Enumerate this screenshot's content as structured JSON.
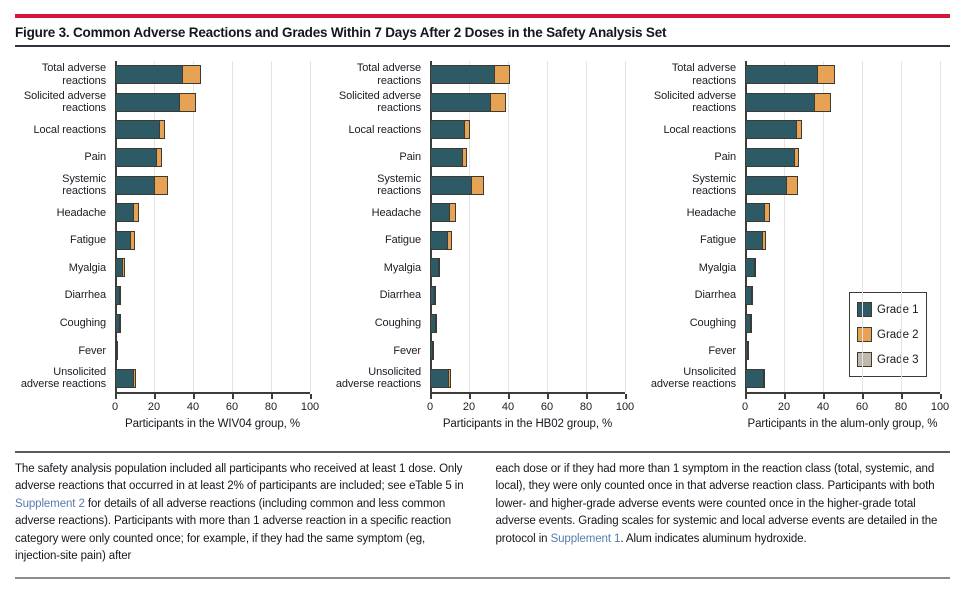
{
  "figure": {
    "title": "Figure 3. Common Adverse Reactions and Grades Within 7 Days After 2 Doses in the Safety Analysis Set"
  },
  "legend": {
    "items": [
      {
        "label": "Grade 1",
        "color": "#2e5a66"
      },
      {
        "label": "Grade 2",
        "color": "#e7a254"
      },
      {
        "label": "Grade 3",
        "color": "#c0b8ab"
      }
    ]
  },
  "chart_data": [
    {
      "type": "bar",
      "orientation": "horizontal",
      "stacked": true,
      "title": "",
      "xlabel": "Participants in the WIV04 group, %",
      "ylabel": "",
      "xlim": [
        0,
        100
      ],
      "xticks": [
        0,
        20,
        40,
        60,
        80,
        100
      ],
      "grid": true,
      "categories": [
        "Total adverse\nreactions",
        "Solicited adverse\nreactions",
        "Local reactions",
        "Pain",
        "Systemic\nreactions",
        "Headache",
        "Fatigue",
        "Myalgia",
        "Diarrhea",
        "Coughing",
        "Fever",
        "Unsolicited\nadverse reactions"
      ],
      "series": [
        {
          "name": "Grade 1",
          "values": [
            34.5,
            33.0,
            23.0,
            21.6,
            20.2,
            9.3,
            8.0,
            3.9,
            2.8,
            2.8,
            0.8,
            9.5
          ]
        },
        {
          "name": "Grade 2",
          "values": [
            9.5,
            8.4,
            2.6,
            2.3,
            6.8,
            3.0,
            2.1,
            1.0,
            0.5,
            0.5,
            0.5,
            1.3
          ]
        },
        {
          "name": "Grade 3",
          "values": [
            0,
            0,
            0,
            0,
            0,
            0,
            0,
            0,
            0,
            0,
            0,
            0
          ]
        }
      ]
    },
    {
      "type": "bar",
      "orientation": "horizontal",
      "stacked": true,
      "title": "",
      "xlabel": "Participants in the HB02 group, %",
      "ylabel": "",
      "xlim": [
        0,
        100
      ],
      "xticks": [
        0,
        20,
        40,
        60,
        80,
        100
      ],
      "grid": true,
      "categories": [
        "Total adverse\nreactions",
        "Solicited adverse\nreactions",
        "Local reactions",
        "Pain",
        "Systemic\nreactions",
        "Headache",
        "Fatigue",
        "Myalgia",
        "Diarrhea",
        "Coughing",
        "Fever",
        "Unsolicited\nadverse reactions"
      ],
      "series": [
        {
          "name": "Grade 1",
          "values": [
            33.0,
            31.3,
            17.9,
            16.9,
            21.3,
            10.2,
            8.9,
            4.6,
            2.9,
            3.4,
            1.7,
            9.8
          ]
        },
        {
          "name": "Grade 2",
          "values": [
            7.9,
            7.7,
            2.6,
            2.0,
            6.4,
            2.9,
            2.3,
            0.7,
            0.4,
            0.4,
            0.3,
            0.9
          ]
        },
        {
          "name": "Grade 3",
          "values": [
            0,
            0,
            0,
            0,
            0,
            0,
            0,
            0,
            0,
            0,
            0,
            0
          ]
        }
      ]
    },
    {
      "type": "bar",
      "orientation": "horizontal",
      "stacked": true,
      "title": "",
      "xlabel": "Participants in the alum-only group, %",
      "ylabel": "",
      "xlim": [
        0,
        100
      ],
      "xticks": [
        0,
        20,
        40,
        60,
        80,
        100
      ],
      "grid": true,
      "categories": [
        "Total adverse\nreactions",
        "Solicited adverse\nreactions",
        "Local reactions",
        "Pain",
        "Systemic\nreactions",
        "Headache",
        "Fatigue",
        "Myalgia",
        "Diarrhea",
        "Coughing",
        "Fever",
        "Unsolicited\nadverse reactions"
      ],
      "series": [
        {
          "name": "Grade 1",
          "values": [
            37.0,
            35.5,
            26.6,
            25.6,
            21.3,
            9.9,
            8.8,
            5.1,
            3.8,
            3.4,
            1.7,
            9.8
          ]
        },
        {
          "name": "Grade 2",
          "values": [
            9.0,
            8.5,
            2.6,
            2.2,
            6.0,
            2.8,
            2.0,
            0.3,
            0.3,
            0.4,
            0.3,
            0.5
          ]
        },
        {
          "name": "Grade 3",
          "values": [
            0,
            0,
            0,
            0,
            0,
            0,
            0,
            0,
            0,
            0,
            0,
            0
          ]
        }
      ]
    }
  ],
  "footnote": {
    "left": [
      {
        "text": "The safety analysis population included all participants who received at least 1 dose. Only adverse reactions that occurred in at least 2% of participants are included; see eTable 5 in "
      },
      {
        "text": "Supplement 2",
        "link": true
      },
      {
        "text": " for details of all adverse reactions (including common and less common adverse reactions). Participants with more than 1 adverse reaction in a specific reaction category were only counted once; for example, if they had the same symptom (eg, injection-site pain) after"
      }
    ],
    "right": [
      {
        "text": "each dose or if they had more than 1 symptom in the reaction class (total, systemic, and local), they were only counted once in that adverse reaction class. Participants with both lower- and higher-grade adverse events were counted once in the higher-grade total adverse events. Grading scales for systemic and local adverse events are detailed in the protocol in "
      },
      {
        "text": "Supplement 1",
        "link": true
      },
      {
        "text": ". Alum indicates aluminum hydroxide."
      }
    ]
  }
}
